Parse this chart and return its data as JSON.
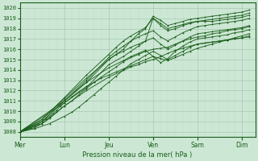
{
  "xlabel": "Pression niveau de la mer( hPa )",
  "bg_color": "#cce8d4",
  "grid_color_major": "#aac8b4",
  "grid_color_minor": "#c0dcc8",
  "line_color": "#1a5c1a",
  "ylim": [
    1007.5,
    1020.5
  ],
  "yticks": [
    1008,
    1009,
    1010,
    1011,
    1012,
    1013,
    1014,
    1015,
    1016,
    1017,
    1018,
    1019,
    1020
  ],
  "day_labels": [
    "Mer",
    "Lun",
    "Jeu",
    "Ven",
    "Sam",
    "Dim"
  ],
  "day_positions": [
    0,
    1,
    2,
    3,
    4,
    5
  ],
  "xlim": [
    0,
    5.3
  ],
  "lines": [
    [
      0.0,
      1008.0,
      0.08,
      1008.1,
      0.16,
      1008.25,
      0.25,
      1008.4,
      0.33,
      1008.55,
      0.42,
      1008.8,
      0.5,
      1009.0,
      0.58,
      1009.2,
      0.67,
      1009.5,
      0.75,
      1009.8,
      0.83,
      1010.1,
      0.92,
      1010.5,
      1.0,
      1010.8,
      1.17,
      1011.4,
      1.33,
      1011.9,
      1.5,
      1012.4,
      1.67,
      1012.8,
      1.83,
      1013.2,
      2.0,
      1013.5,
      2.17,
      1013.8,
      2.33,
      1014.1,
      2.5,
      1014.4,
      2.67,
      1014.7,
      2.83,
      1015.0,
      3.0,
      1015.3,
      3.17,
      1015.1,
      3.33,
      1014.9,
      3.5,
      1015.2,
      3.67,
      1015.5,
      3.83,
      1015.8,
      4.0,
      1016.1,
      4.17,
      1016.3,
      4.33,
      1016.5,
      4.5,
      1016.7,
      4.67,
      1016.9,
      4.83,
      1017.1,
      5.0,
      1017.3,
      5.17,
      1017.5
    ],
    [
      0.0,
      1008.0,
      0.5,
      1008.8,
      1.0,
      1010.5,
      1.5,
      1012.0,
      2.0,
      1013.3,
      2.5,
      1014.3,
      2.67,
      1014.5,
      2.83,
      1014.8,
      3.0,
      1015.0,
      3.17,
      1015.3,
      3.33,
      1015.6,
      3.5,
      1015.9,
      3.67,
      1016.1,
      3.83,
      1016.3,
      4.0,
      1016.5,
      4.17,
      1016.6,
      4.33,
      1016.7,
      4.5,
      1016.8,
      4.67,
      1016.9,
      4.83,
      1017.0,
      5.0,
      1017.1,
      5.17,
      1017.3
    ],
    [
      0.0,
      1008.0,
      0.5,
      1009.0,
      1.0,
      1011.0,
      1.5,
      1012.8,
      2.0,
      1014.2,
      2.33,
      1014.9,
      2.5,
      1015.3,
      2.67,
      1015.6,
      2.83,
      1015.9,
      3.0,
      1015.3,
      3.17,
      1014.7,
      3.33,
      1015.1,
      3.5,
      1015.8,
      3.67,
      1016.3,
      3.83,
      1016.7,
      4.0,
      1017.0,
      4.17,
      1017.1,
      4.33,
      1017.2,
      4.5,
      1017.3,
      4.67,
      1017.4,
      4.83,
      1017.6,
      5.0,
      1017.7,
      5.17,
      1017.9
    ],
    [
      0.0,
      1008.0,
      0.5,
      1009.2,
      1.0,
      1011.2,
      1.5,
      1013.2,
      2.0,
      1015.0,
      2.17,
      1015.5,
      2.33,
      1015.8,
      2.5,
      1016.2,
      2.67,
      1016.5,
      2.83,
      1016.8,
      3.0,
      1017.1,
      3.17,
      1016.5,
      3.33,
      1016.0,
      3.5,
      1016.4,
      3.67,
      1016.8,
      3.83,
      1017.2,
      4.0,
      1017.5,
      4.17,
      1017.6,
      4.33,
      1017.7,
      4.5,
      1017.8,
      4.67,
      1017.9,
      4.83,
      1018.0,
      5.0,
      1018.1,
      5.17,
      1018.3
    ],
    [
      0.0,
      1008.0,
      0.33,
      1008.4,
      0.5,
      1008.8,
      0.67,
      1009.3,
      0.83,
      1009.9,
      1.0,
      1010.5,
      1.17,
      1011.0,
      1.33,
      1011.6,
      1.5,
      1012.2,
      1.67,
      1012.8,
      1.83,
      1013.3,
      2.0,
      1013.8,
      2.17,
      1014.3,
      2.33,
      1014.8,
      2.5,
      1015.2,
      2.67,
      1015.5,
      2.83,
      1015.8,
      3.0,
      1016.0,
      3.17,
      1016.1,
      3.33,
      1016.2,
      3.5,
      1016.5,
      3.67,
      1016.8,
      3.83,
      1017.0,
      4.0,
      1017.2,
      4.17,
      1017.3,
      4.33,
      1017.5,
      4.5,
      1017.6,
      4.67,
      1017.8,
      4.83,
      1017.9,
      5.0,
      1018.0,
      5.17,
      1018.2
    ],
    [
      0.0,
      1008.0,
      0.5,
      1009.0,
      1.0,
      1011.0,
      1.5,
      1013.0,
      2.0,
      1015.2,
      2.17,
      1015.8,
      2.33,
      1016.3,
      2.5,
      1016.8,
      2.67,
      1017.2,
      2.83,
      1017.5,
      3.0,
      1017.8,
      3.17,
      1017.2,
      3.33,
      1016.8,
      3.5,
      1017.2,
      3.67,
      1017.6,
      3.83,
      1017.9,
      4.0,
      1018.2,
      4.17,
      1018.3,
      4.33,
      1018.4,
      4.5,
      1018.5,
      4.67,
      1018.6,
      4.83,
      1018.7,
      5.0,
      1018.8,
      5.17,
      1019.0
    ],
    [
      0.0,
      1008.0,
      0.5,
      1009.2,
      1.0,
      1011.3,
      1.5,
      1013.5,
      2.0,
      1015.5,
      2.17,
      1016.2,
      2.33,
      1016.8,
      2.5,
      1017.3,
      2.67,
      1017.7,
      2.83,
      1018.1,
      3.0,
      1019.0,
      3.17,
      1018.3,
      3.33,
      1017.8,
      3.5,
      1018.0,
      3.67,
      1018.3,
      3.83,
      1018.5,
      4.0,
      1018.7,
      4.17,
      1018.8,
      4.33,
      1018.9,
      4.5,
      1019.0,
      4.67,
      1019.1,
      4.83,
      1019.2,
      5.0,
      1019.3,
      5.17,
      1019.5
    ],
    [
      0.0,
      1008.0,
      0.33,
      1008.3,
      0.67,
      1008.8,
      1.0,
      1009.5,
      1.17,
      1009.9,
      1.33,
      1010.4,
      1.5,
      1011.0,
      1.67,
      1011.6,
      1.83,
      1012.2,
      2.0,
      1012.8,
      2.17,
      1013.4,
      2.33,
      1014.0,
      2.5,
      1014.6,
      2.67,
      1015.0,
      2.83,
      1015.4,
      3.0,
      1015.8,
      3.17,
      1015.4,
      3.33,
      1015.0,
      3.5,
      1015.4,
      3.67,
      1015.8,
      3.83,
      1016.2,
      4.0,
      1016.5,
      4.17,
      1016.6,
      4.33,
      1016.7,
      4.5,
      1016.8,
      4.67,
      1016.9,
      4.83,
      1017.0,
      5.0,
      1017.1,
      5.17,
      1017.2
    ],
    [
      0.0,
      1008.0,
      1.0,
      1010.8,
      1.5,
      1012.3,
      2.0,
      1014.5,
      2.33,
      1015.3,
      2.5,
      1015.8,
      2.67,
      1016.3,
      2.83,
      1016.8,
      3.0,
      1019.0,
      3.17,
      1018.5,
      3.33,
      1018.0,
      3.5,
      1018.2,
      3.67,
      1018.4,
      3.83,
      1018.6,
      4.0,
      1018.7,
      4.17,
      1018.7,
      4.33,
      1018.7,
      4.5,
      1018.8,
      4.67,
      1018.9,
      4.83,
      1019.0,
      5.0,
      1019.1,
      5.17,
      1019.3
    ],
    [
      0.0,
      1008.0,
      1.0,
      1011.0,
      1.5,
      1012.8,
      2.0,
      1015.0,
      2.33,
      1016.0,
      2.5,
      1016.8,
      2.67,
      1017.5,
      2.83,
      1018.0,
      3.0,
      1019.2,
      3.17,
      1018.8,
      3.33,
      1018.3,
      3.5,
      1018.5,
      3.67,
      1018.7,
      3.83,
      1018.9,
      4.0,
      1019.0,
      4.17,
      1019.1,
      4.33,
      1019.2,
      4.5,
      1019.3,
      4.67,
      1019.4,
      4.83,
      1019.5,
      5.0,
      1019.6,
      5.17,
      1019.8
    ]
  ]
}
